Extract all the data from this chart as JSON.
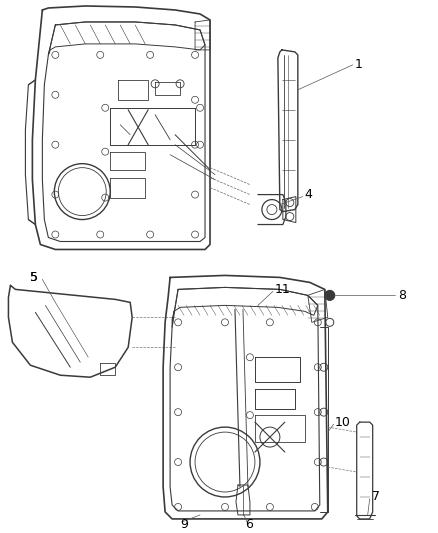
{
  "bg_color": "#ffffff",
  "line_color": "#3a3a3a",
  "label_color": "#000000",
  "fig_width": 4.38,
  "fig_height": 5.33,
  "dpi": 100
}
